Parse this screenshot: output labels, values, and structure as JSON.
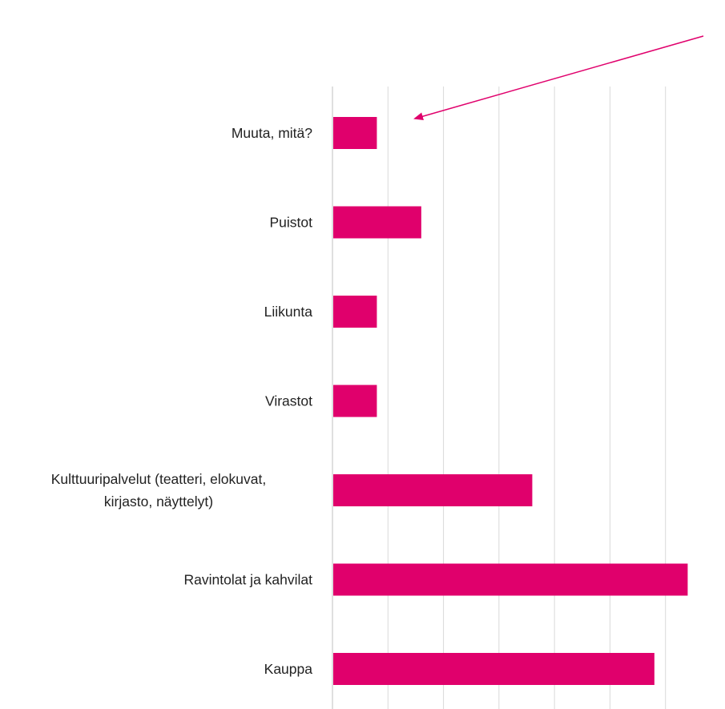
{
  "colors": {
    "bar": "#e0006c",
    "grid": "#d9d9d9",
    "axis": "#bfbfbf",
    "arrow": "#e0006c",
    "text": "#222222"
  },
  "chart_data": {
    "type": "bar",
    "orientation": "horizontal",
    "categories": [
      "Muuta, mitä?",
      "Puistot",
      "Liikunta",
      "Virastot",
      "Kulttuuripalvelut (teatteri, elokuvat, kirjasto, näyttelyt)",
      "Ravintolat ja kahvilat",
      "Kauppa"
    ],
    "category_label_lines": [
      [
        "Muuta, mitä?"
      ],
      [
        "Puistot"
      ],
      [
        "Liikunta"
      ],
      [
        "Virastot"
      ],
      [
        "Kulttuuripalvelut (teatteri, elokuvat,",
        "kirjasto, näyttelyt)"
      ],
      [
        "Ravintolat ja kahvilat"
      ],
      [
        "Kauppa"
      ]
    ],
    "values": [
      4,
      8,
      4,
      4,
      18,
      32,
      29
    ],
    "xlim": [
      0,
      35
    ],
    "gridlines": [
      0,
      5,
      10,
      15,
      20,
      25,
      30
    ],
    "grid": true,
    "legend": "none",
    "tick_labels_shown": false,
    "annotation": "arrow pointing to the top bar"
  }
}
